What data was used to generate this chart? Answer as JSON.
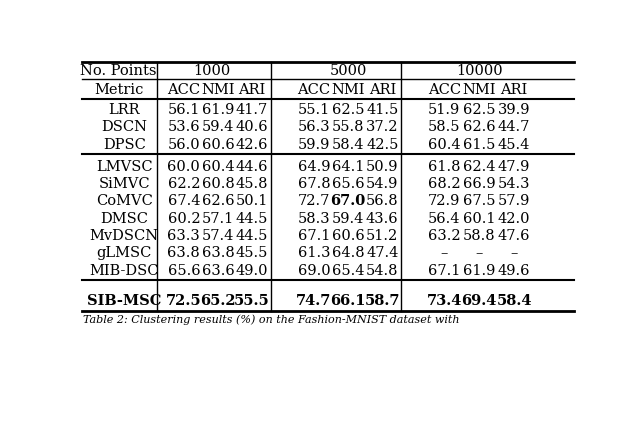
{
  "caption": "Table 2: Clustering results (%) on the Fashion-MNIST dataset with",
  "col_headers_1": [
    "No. Points",
    "1000",
    "5000",
    "10000"
  ],
  "col_headers_2": [
    "Metric",
    "ACC",
    "NMI",
    "ARI",
    "ACC",
    "NMI",
    "ARI",
    "ACC",
    "NMI",
    "ARI"
  ],
  "group1": [
    [
      "LRR",
      "56.1",
      "61.9",
      "41.7",
      "55.1",
      "62.5",
      "41.5",
      "51.9",
      "62.5",
      "39.9"
    ],
    [
      "DSCN",
      "53.6",
      "59.4",
      "40.6",
      "56.3",
      "55.8",
      "37.2",
      "58.5",
      "62.6",
      "44.7"
    ],
    [
      "DPSC",
      "56.0",
      "60.6",
      "42.6",
      "59.9",
      "58.4",
      "42.5",
      "60.4",
      "61.5",
      "45.4"
    ]
  ],
  "group2": [
    [
      "LMVSC",
      "60.0",
      "60.4",
      "44.6",
      "64.9",
      "64.1",
      "50.9",
      "61.8",
      "62.4",
      "47.9"
    ],
    [
      "SiMVC",
      "62.2",
      "60.8",
      "45.8",
      "67.8",
      "65.6",
      "54.9",
      "68.2",
      "66.9",
      "54.3"
    ],
    [
      "CoMVC",
      "67.4",
      "62.6",
      "50.1",
      "72.7",
      "67.0",
      "56.8",
      "72.9",
      "67.5",
      "57.9"
    ],
    [
      "DMSC",
      "60.2",
      "57.1",
      "44.5",
      "58.3",
      "59.4",
      "43.6",
      "56.4",
      "60.1",
      "42.0"
    ],
    [
      "MvDSCN",
      "63.3",
      "57.4",
      "44.5",
      "67.1",
      "60.6",
      "51.2",
      "63.2",
      "58.8",
      "47.6"
    ],
    [
      "gLMSC",
      "63.8",
      "63.8",
      "45.5",
      "61.3",
      "64.8",
      "47.4",
      "–",
      "–",
      "–"
    ],
    [
      "MIB-DSC",
      "65.6",
      "63.6",
      "49.0",
      "69.0",
      "65.4",
      "54.8",
      "67.1",
      "61.9",
      "49.6"
    ]
  ],
  "sib_row": [
    "SIB-MSC",
    "72.5",
    "65.2",
    "55.5",
    "74.7",
    "66.1",
    "58.7",
    "73.4",
    "69.4",
    "58.4"
  ],
  "bold_group2_comvc_nmi5000": true,
  "background_color": "#ffffff",
  "text_color": "#000000",
  "fontsize": 10.5
}
